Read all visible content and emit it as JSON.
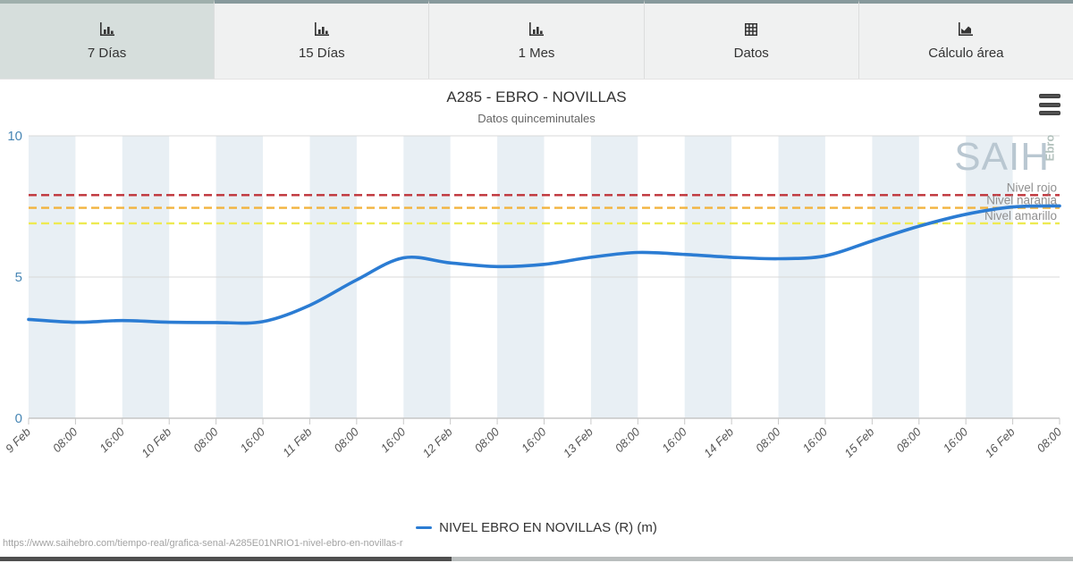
{
  "tabs": {
    "active_index": 0,
    "items": [
      {
        "label": "7 Días",
        "icon": "bar-chart-icon"
      },
      {
        "label": "15 Días",
        "icon": "bar-chart-icon"
      },
      {
        "label": "1 Mes",
        "icon": "bar-chart-icon"
      },
      {
        "label": "Datos",
        "icon": "table-icon"
      },
      {
        "label": "Cálculo área",
        "icon": "area-chart-icon"
      }
    ]
  },
  "watermark": {
    "main": "SAIH",
    "sub": "Ebro"
  },
  "footer": {
    "url": "https://www.saihebro.com/tiempo-real/grafica-senal-A285E01NRIO1-nivel-ebro-en-novillas-r"
  },
  "chart_data": {
    "type": "line",
    "title": "A285 - EBRO - NOVILLAS",
    "subtitle": "Datos quinceminutales",
    "x_tick_labels": [
      "9 Feb",
      "08:00",
      "16:00",
      "10 Feb",
      "08:00",
      "16:00",
      "11 Feb",
      "08:00",
      "16:00",
      "12 Feb",
      "08:00",
      "16:00",
      "13 Feb",
      "08:00",
      "16:00",
      "14 Feb",
      "08:00",
      "16:00",
      "15 Feb",
      "08:00",
      "16:00",
      "16 Feb",
      "08:00"
    ],
    "series": [
      {
        "name": "NIVEL EBRO EN NOVILLAS (R) (m)",
        "color": "#2b7cd3",
        "values": [
          3.5,
          3.4,
          3.46,
          3.4,
          3.39,
          3.42,
          4.0,
          4.9,
          5.68,
          5.5,
          5.37,
          5.45,
          5.7,
          5.87,
          5.8,
          5.7,
          5.65,
          5.75,
          6.28,
          6.8,
          7.22,
          7.48,
          7.52
        ]
      }
    ],
    "plot_lines": [
      {
        "label": "Nivel rojo",
        "value": 7.9,
        "color": "#bf3339"
      },
      {
        "label": "Nivel naranja",
        "value": 7.45,
        "color": "#f2b33d"
      },
      {
        "label": "Nivel amarillo",
        "value": 6.9,
        "color": "#eeea52"
      }
    ],
    "ylim": [
      0,
      10
    ],
    "yticks": [
      0,
      5,
      10
    ],
    "band_color": "#e8eff4",
    "axis_label_colors": {
      "y": "#4987b5",
      "x": "#555555",
      "plot_line_label": "#909090"
    },
    "grid": true,
    "legend_position": "bottom"
  }
}
